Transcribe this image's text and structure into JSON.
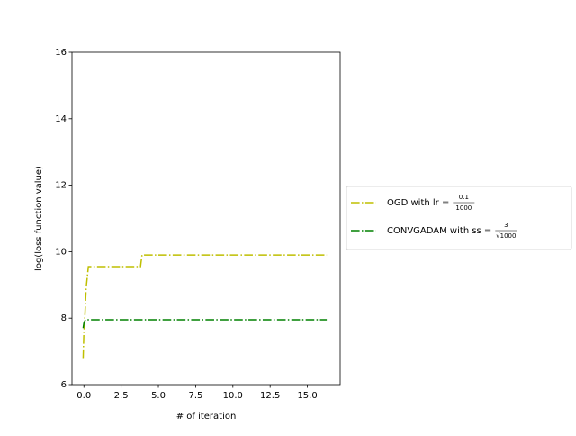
{
  "chart_data": {
    "type": "line",
    "xlabel": "# of iteration",
    "ylabel": "log(loss function value)",
    "xlim": [
      -0.8,
      17.2
    ],
    "ylim": [
      6,
      16
    ],
    "xticks": [
      {
        "value": 0,
        "label": "0.0"
      },
      {
        "value": 2.5,
        "label": "2.5"
      },
      {
        "value": 5,
        "label": "5.0"
      },
      {
        "value": 7.5,
        "label": "7.5"
      },
      {
        "value": 10,
        "label": "10.0"
      },
      {
        "value": 12.5,
        "label": "12.5"
      },
      {
        "value": 15,
        "label": "15.0"
      }
    ],
    "yticks": [
      6,
      8,
      10,
      12,
      14,
      16
    ],
    "legend": "outside-right",
    "series": [
      {
        "name": "OGD with lr =",
        "name_fraction": [
          "0.1",
          "1000"
        ],
        "color": "#bfbf00",
        "x": [
          -0.05,
          0.0,
          0.05,
          0.15,
          0.3,
          3.8,
          3.9,
          16.3
        ],
        "values": [
          6.8,
          7.6,
          7.9,
          8.9,
          9.55,
          9.55,
          9.9,
          9.9
        ]
      },
      {
        "name": "CONVGADAM with ss =",
        "name_fraction": [
          "3",
          "√1000"
        ],
        "color": "#008000",
        "x": [
          -0.05,
          0.0,
          0.1,
          16.3
        ],
        "values": [
          7.7,
          7.85,
          7.95,
          7.95
        ]
      }
    ]
  }
}
